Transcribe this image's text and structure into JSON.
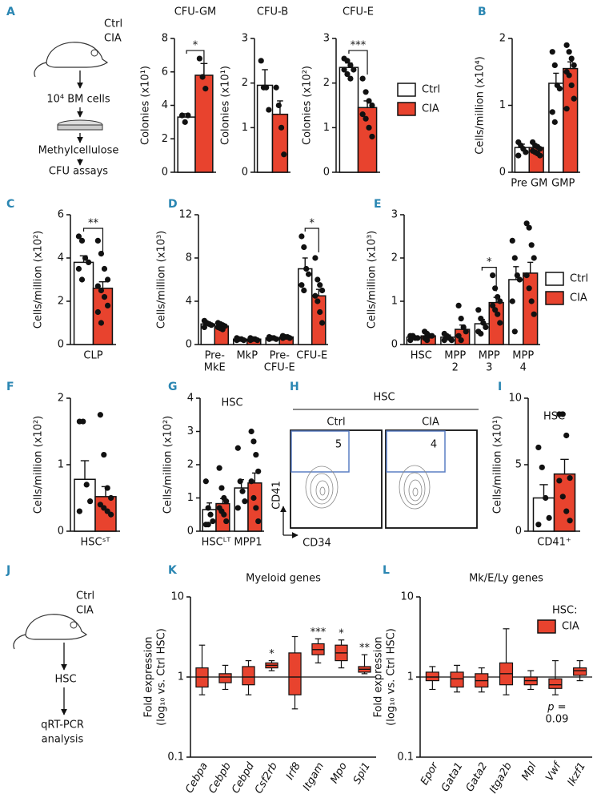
{
  "panel_labels": [
    "A",
    "B",
    "C",
    "D",
    "E",
    "F",
    "G",
    "H",
    "I",
    "J",
    "K",
    "L"
  ],
  "schematic_a": {
    "groups": [
      "Ctrl",
      "CIA"
    ],
    "steps": [
      "10⁴ BM cells",
      "Methylcellulose",
      "CFU assays"
    ]
  },
  "schematic_j": {
    "groups": [
      "Ctrl",
      "CIA"
    ],
    "steps": [
      "HSC",
      "qRT-PCR",
      "analysis"
    ]
  },
  "flow_h": {
    "title": "HSC",
    "groups": [
      "Ctrl",
      "CIA"
    ],
    "gates": [
      5,
      4
    ],
    "x_label": "CD34",
    "y_label": "CD41"
  },
  "chart_data": [
    {
      "type": "bar",
      "title": "CFU-GM",
      "ylabel": "Colonies (x10¹)",
      "categories": [
        null
      ],
      "ylim": [
        0,
        8
      ],
      "yticks": [
        0,
        2,
        4,
        6,
        8
      ],
      "significance": [
        "*"
      ],
      "series": [
        {
          "name": "Ctrl",
          "color": "#ffffff",
          "values": [
            3.3
          ],
          "errors": [
            0.2
          ],
          "points": [
            [
              3.4,
              3.0,
              3.4
            ]
          ]
        },
        {
          "name": "CIA",
          "color": "#e8432e",
          "values": [
            5.8
          ],
          "errors": [
            0.7
          ],
          "points": [
            [
              6.8,
              5.7,
              5.0
            ]
          ]
        }
      ]
    },
    {
      "type": "bar",
      "title": "CFU-B",
      "ylabel": "Colonies (x10¹)",
      "categories": [
        null
      ],
      "ylim": [
        0,
        3
      ],
      "yticks": [
        0,
        1,
        2,
        3
      ],
      "series": [
        {
          "name": "Ctrl",
          "color": "#ffffff",
          "values": [
            1.95
          ],
          "errors": [
            0.35
          ],
          "points": [
            [
              2.5,
              1.9,
              1.9,
              1.4
            ]
          ]
        },
        {
          "name": "CIA",
          "color": "#e8432e",
          "values": [
            1.3
          ],
          "errors": [
            0.3
          ],
          "points": [
            [
              1.9,
              1.5,
              1.0,
              0.4
            ]
          ]
        }
      ]
    },
    {
      "type": "bar",
      "title": "CFU-E",
      "ylabel": "Colonies (x10²)",
      "categories": [
        null
      ],
      "ylim": [
        0,
        3
      ],
      "yticks": [
        0,
        1,
        2,
        3
      ],
      "significance": [
        "***"
      ],
      "legend": "right",
      "series": [
        {
          "name": "Ctrl",
          "color": "#ffffff",
          "values": [
            2.35
          ],
          "errors": [
            0.1
          ],
          "points": [
            [
              2.55,
              2.5,
              2.4,
              2.3,
              2.3,
              2.2,
              2.1
            ]
          ]
        },
        {
          "name": "CIA",
          "color": "#e8432e",
          "values": [
            1.45
          ],
          "errors": [
            0.15
          ],
          "points": [
            [
              2.1,
              1.8,
              1.6,
              1.5,
              1.3,
              1.2,
              1.0,
              0.8
            ]
          ]
        }
      ]
    },
    {
      "type": "bar",
      "ylabel": "Cells/million (x10⁴)",
      "categories": [
        "Pre GM",
        "GMP"
      ],
      "ylim": [
        0,
        2
      ],
      "yticks": [
        0,
        1,
        2
      ],
      "series": [
        {
          "name": "Ctrl",
          "color": "#ffffff",
          "values": [
            0.37,
            1.33
          ],
          "errors": [
            0.05,
            0.15
          ],
          "points": [
            [
              0.45,
              0.4,
              0.35,
              0.3,
              0.25
            ],
            [
              1.8,
              1.6,
              1.3,
              1.25,
              0.9,
              0.75
            ]
          ]
        },
        {
          "name": "CIA",
          "color": "#e8432e",
          "values": [
            0.37,
            1.55
          ],
          "errors": [
            0.04,
            0.1
          ],
          "points": [
            [
              0.45,
              0.4,
              0.38,
              0.35,
              0.32,
              0.3,
              0.28,
              0.25
            ],
            [
              1.9,
              1.8,
              1.7,
              1.6,
              1.5,
              1.45,
              1.3,
              1.1,
              0.95
            ]
          ]
        }
      ]
    },
    {
      "type": "bar",
      "ylabel": "Cells/million (x10²)",
      "categories": [
        "CLP"
      ],
      "ylim": [
        0,
        6
      ],
      "yticks": [
        0,
        2,
        4,
        6
      ],
      "significance": [
        "**"
      ],
      "series": [
        {
          "name": "Ctrl",
          "color": "#ffffff",
          "values": [
            3.8
          ],
          "errors": [
            0.3
          ],
          "points": [
            [
              5.0,
              4.8,
              4.0,
              3.8,
              3.5,
              3.0
            ]
          ]
        },
        {
          "name": "CIA",
          "color": "#e8432e",
          "values": [
            2.6
          ],
          "errors": [
            0.3
          ],
          "points": [
            [
              4.8,
              4.2,
              3.5,
              3.0,
              2.7,
              2.5,
              2.2,
              1.8,
              1.5,
              1.0
            ]
          ]
        }
      ]
    },
    {
      "type": "bar",
      "ylabel": "Cells/million (x10³)",
      "categories": [
        [
          "Pre-",
          "MkE"
        ],
        [
          "MkP"
        ],
        [
          "Pre-",
          "CFU-E"
        ],
        [
          "CFU-E"
        ]
      ],
      "ylim": [
        0,
        12
      ],
      "yticks": [
        0,
        4,
        8,
        12
      ],
      "significance": [
        null,
        null,
        null,
        "*"
      ],
      "series": [
        {
          "name": "Ctrl",
          "color": "#ffffff",
          "values": [
            1.9,
            0.5,
            0.6,
            7.0
          ],
          "errors": [
            0.2,
            0.1,
            0.1,
            1.0
          ],
          "points": [
            [
              2.2,
              2.0,
              1.9,
              1.8,
              1.6
            ],
            [
              0.6,
              0.5,
              0.5,
              0.4,
              0.4
            ],
            [
              0.7,
              0.6,
              0.6,
              0.5,
              0.5
            ],
            [
              10.0,
              9.0,
              7.0,
              6.5,
              5.5,
              5.0
            ]
          ]
        },
        {
          "name": "CIA",
          "color": "#e8432e",
          "values": [
            1.7,
            0.5,
            0.7,
            4.5
          ],
          "errors": [
            0.1,
            0.05,
            0.1,
            0.6
          ],
          "points": [
            [
              2.0,
              1.9,
              1.8,
              1.7,
              1.6,
              1.5,
              1.4
            ],
            [
              0.6,
              0.5,
              0.5,
              0.4,
              0.4
            ],
            [
              0.8,
              0.7,
              0.7,
              0.6,
              0.6
            ],
            [
              8.0,
              6.0,
              5.5,
              5.0,
              4.5,
              4.0,
              3.0,
              2.0
            ]
          ]
        }
      ]
    },
    {
      "type": "bar",
      "ylabel": "Cells/million (x10³)",
      "categories": [
        [
          "HSC"
        ],
        [
          "MPP",
          "2"
        ],
        [
          "MPP",
          "3"
        ],
        [
          "MPP",
          "4"
        ]
      ],
      "ylim": [
        0,
        3
      ],
      "yticks": [
        0,
        1,
        2,
        3
      ],
      "significance": [
        null,
        null,
        "*",
        null
      ],
      "legend": "right",
      "series": [
        {
          "name": "Ctrl",
          "color": "#ffffff",
          "values": [
            0.17,
            0.17,
            0.48,
            1.5
          ],
          "errors": [
            0.03,
            0.05,
            0.1,
            0.3
          ],
          "points": [
            [
              0.2,
              0.2,
              0.15,
              0.15,
              0.1
            ],
            [
              0.25,
              0.2,
              0.15,
              0.1,
              0.1
            ],
            [
              0.8,
              0.6,
              0.5,
              0.4,
              0.3,
              0.25
            ],
            [
              2.4,
              2.0,
              1.6,
              1.5,
              1.0,
              0.3
            ]
          ]
        },
        {
          "name": "CIA",
          "color": "#e8432e",
          "values": [
            0.2,
            0.35,
            0.97,
            1.65
          ],
          "errors": [
            0.04,
            0.1,
            0.12,
            0.25
          ],
          "points": [
            [
              0.3,
              0.25,
              0.2,
              0.2,
              0.15,
              0.1
            ],
            [
              0.9,
              0.6,
              0.4,
              0.3,
              0.2,
              0.1
            ],
            [
              1.6,
              1.3,
              1.1,
              1.0,
              0.9,
              0.8,
              0.7,
              0.5
            ],
            [
              2.8,
              2.7,
              2.3,
              2.0,
              1.6,
              1.3,
              1.0,
              0.7
            ]
          ]
        }
      ]
    },
    {
      "type": "bar",
      "ylabel": "Cells/million (x10²)",
      "categories": [
        "HSCˢᵀ"
      ],
      "ylim": [
        0,
        2
      ],
      "yticks": [
        0,
        1,
        2
      ],
      "series": [
        {
          "name": "Ctrl",
          "color": "#ffffff",
          "values": [
            0.78
          ],
          "errors": [
            0.28
          ],
          "points": [
            [
              1.65,
              1.65,
              0.7,
              0.45,
              0.3
            ]
          ]
        },
        {
          "name": "CIA",
          "color": "#e8432e",
          "values": [
            0.52
          ],
          "errors": [
            0.15
          ],
          "points": [
            [
              1.75,
              1.15,
              0.65,
              0.5,
              0.4,
              0.35,
              0.3,
              0.25
            ]
          ]
        }
      ]
    },
    {
      "type": "bar",
      "title": "HSC",
      "ylabel": "Cells/million (x10²)",
      "categories": [
        "HSCᴸᵀ",
        "MPP1"
      ],
      "ylim": [
        0,
        4
      ],
      "yticks": [
        0,
        1,
        2,
        3,
        4
      ],
      "series": [
        {
          "name": "Ctrl",
          "color": "#ffffff",
          "values": [
            0.65,
            1.3
          ],
          "errors": [
            0.2,
            0.25
          ],
          "points": [
            [
              1.5,
              0.7,
              0.5,
              0.3,
              0.2,
              0.2
            ],
            [
              2.5,
              1.5,
              1.2,
              0.9,
              0.7
            ]
          ]
        },
        {
          "name": "CIA",
          "color": "#e8432e",
          "values": [
            0.83,
            1.45
          ],
          "errors": [
            0.15,
            0.3
          ],
          "points": [
            [
              1.9,
              1.3,
              1.0,
              0.9,
              0.7,
              0.6,
              0.5,
              0.3
            ],
            [
              3.0,
              2.7,
              2.3,
              1.8,
              1.5,
              1.0,
              0.7,
              0.3
            ]
          ]
        }
      ]
    },
    {
      "type": "bar",
      "title": "HSC",
      "ylabel": "Cells/million (x10¹)",
      "categories": [
        "CD41⁺"
      ],
      "ylim": [
        0,
        10
      ],
      "yticks": [
        0,
        5,
        10
      ],
      "series": [
        {
          "name": "Ctrl",
          "color": "#ffffff",
          "values": [
            2.5
          ],
          "errors": [
            1.0
          ],
          "points": [
            [
              6.3,
              4.8,
              2.5,
              1.0,
              0.5
            ]
          ]
        },
        {
          "name": "CIA",
          "color": "#e8432e",
          "values": [
            4.3
          ],
          "errors": [
            1.1
          ],
          "points": [
            [
              8.8,
              8.8,
              7.2,
              4.0,
              3.8,
              2.6,
              1.5,
              0.8
            ]
          ]
        }
      ]
    },
    {
      "type": "box",
      "title": "Myeloid genes",
      "ylabel": [
        "Fold expression",
        "(log₁₀ vs. Ctrl HSC)"
      ],
      "log_scale": true,
      "ylim": [
        0.1,
        10
      ],
      "yticks": [
        0.1,
        1,
        10
      ],
      "hline": 1,
      "categories": [
        "Cebpa",
        "Cebpb",
        "Cebpd",
        "Csf2rb",
        "Irf8",
        "Itgam",
        "Mpo",
        "Spi1"
      ],
      "significance": [
        null,
        null,
        null,
        "*",
        null,
        "***",
        "*",
        "**"
      ],
      "series": [
        {
          "name": "CIA",
          "color": "#e8432e",
          "stats": [
            [
              0.6,
              0.75,
              1.0,
              1.3,
              2.5
            ],
            [
              0.7,
              0.85,
              1.0,
              1.1,
              1.4
            ],
            [
              0.6,
              0.8,
              1.0,
              1.35,
              1.6
            ],
            [
              1.2,
              1.3,
              1.4,
              1.5,
              1.6
            ],
            [
              0.4,
              0.6,
              1.0,
              2.0,
              3.2
            ],
            [
              1.5,
              1.9,
              2.2,
              2.6,
              3.0
            ],
            [
              1.3,
              1.6,
              2.0,
              2.5,
              2.9
            ],
            [
              1.1,
              1.15,
              1.25,
              1.35,
              1.9
            ]
          ]
        }
      ]
    },
    {
      "type": "box",
      "title": "Mk/E/Ly genes",
      "ylabel": [
        "Fold expression",
        "(log₁₀ vs. Ctrl HSC)"
      ],
      "log_scale": true,
      "ylim": [
        0.1,
        10
      ],
      "yticks": [
        0.1,
        1,
        10
      ],
      "hline": 1,
      "legend": "upper right",
      "legend_title": "HSC:",
      "categories": [
        "Epor",
        "Gata1",
        "Gata2",
        "Itga2b",
        "Mpl",
        "Vwf",
        "Ikzf1"
      ],
      "note": {
        "index": 5,
        "lines": [
          "p =",
          "0.09"
        ]
      },
      "series": [
        {
          "name": "CIA",
          "color": "#e8432e",
          "stats": [
            [
              0.7,
              0.9,
              1.0,
              1.15,
              1.35
            ],
            [
              0.65,
              0.75,
              0.95,
              1.15,
              1.4
            ],
            [
              0.65,
              0.75,
              0.9,
              1.1,
              1.3
            ],
            [
              0.6,
              0.8,
              1.1,
              1.5,
              4.0
            ],
            [
              0.7,
              0.8,
              0.9,
              1.0,
              1.2
            ],
            [
              0.6,
              0.72,
              0.8,
              0.95,
              1.6
            ],
            [
              0.9,
              1.05,
              1.2,
              1.3,
              1.6
            ]
          ]
        }
      ]
    }
  ]
}
